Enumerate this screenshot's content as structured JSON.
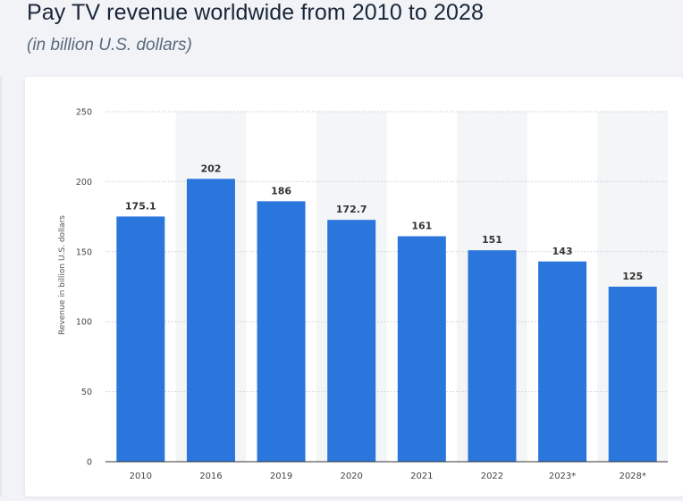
{
  "header": {
    "title": "Pay TV revenue worldwide from 2010 to 2028",
    "subtitle": "(in billion U.S. dollars)"
  },
  "colors": {
    "bar": "#2a76dc",
    "band": "#f4f5f7",
    "grid": "#c9cdd3",
    "axis_text": "#444444",
    "label_text": "#333333"
  },
  "chart_data": {
    "type": "bar",
    "title": "Pay TV revenue worldwide from 2010 to 2028",
    "subtitle": "(in billion U.S. dollars)",
    "xlabel": "",
    "ylabel": "Revenue in billion U.S. dollars",
    "ylim": [
      0,
      250
    ],
    "yticks": [
      0,
      50,
      100,
      150,
      200,
      250
    ],
    "grid": true,
    "categories": [
      "2010",
      "2016",
      "2019",
      "2020",
      "2021",
      "2022",
      "2023*",
      "2028*"
    ],
    "values": [
      175.1,
      202,
      186,
      172.7,
      161,
      151,
      143,
      125
    ],
    "value_labels": [
      "175.1",
      "202",
      "186",
      "172.7",
      "161",
      "151",
      "143",
      "125"
    ]
  }
}
